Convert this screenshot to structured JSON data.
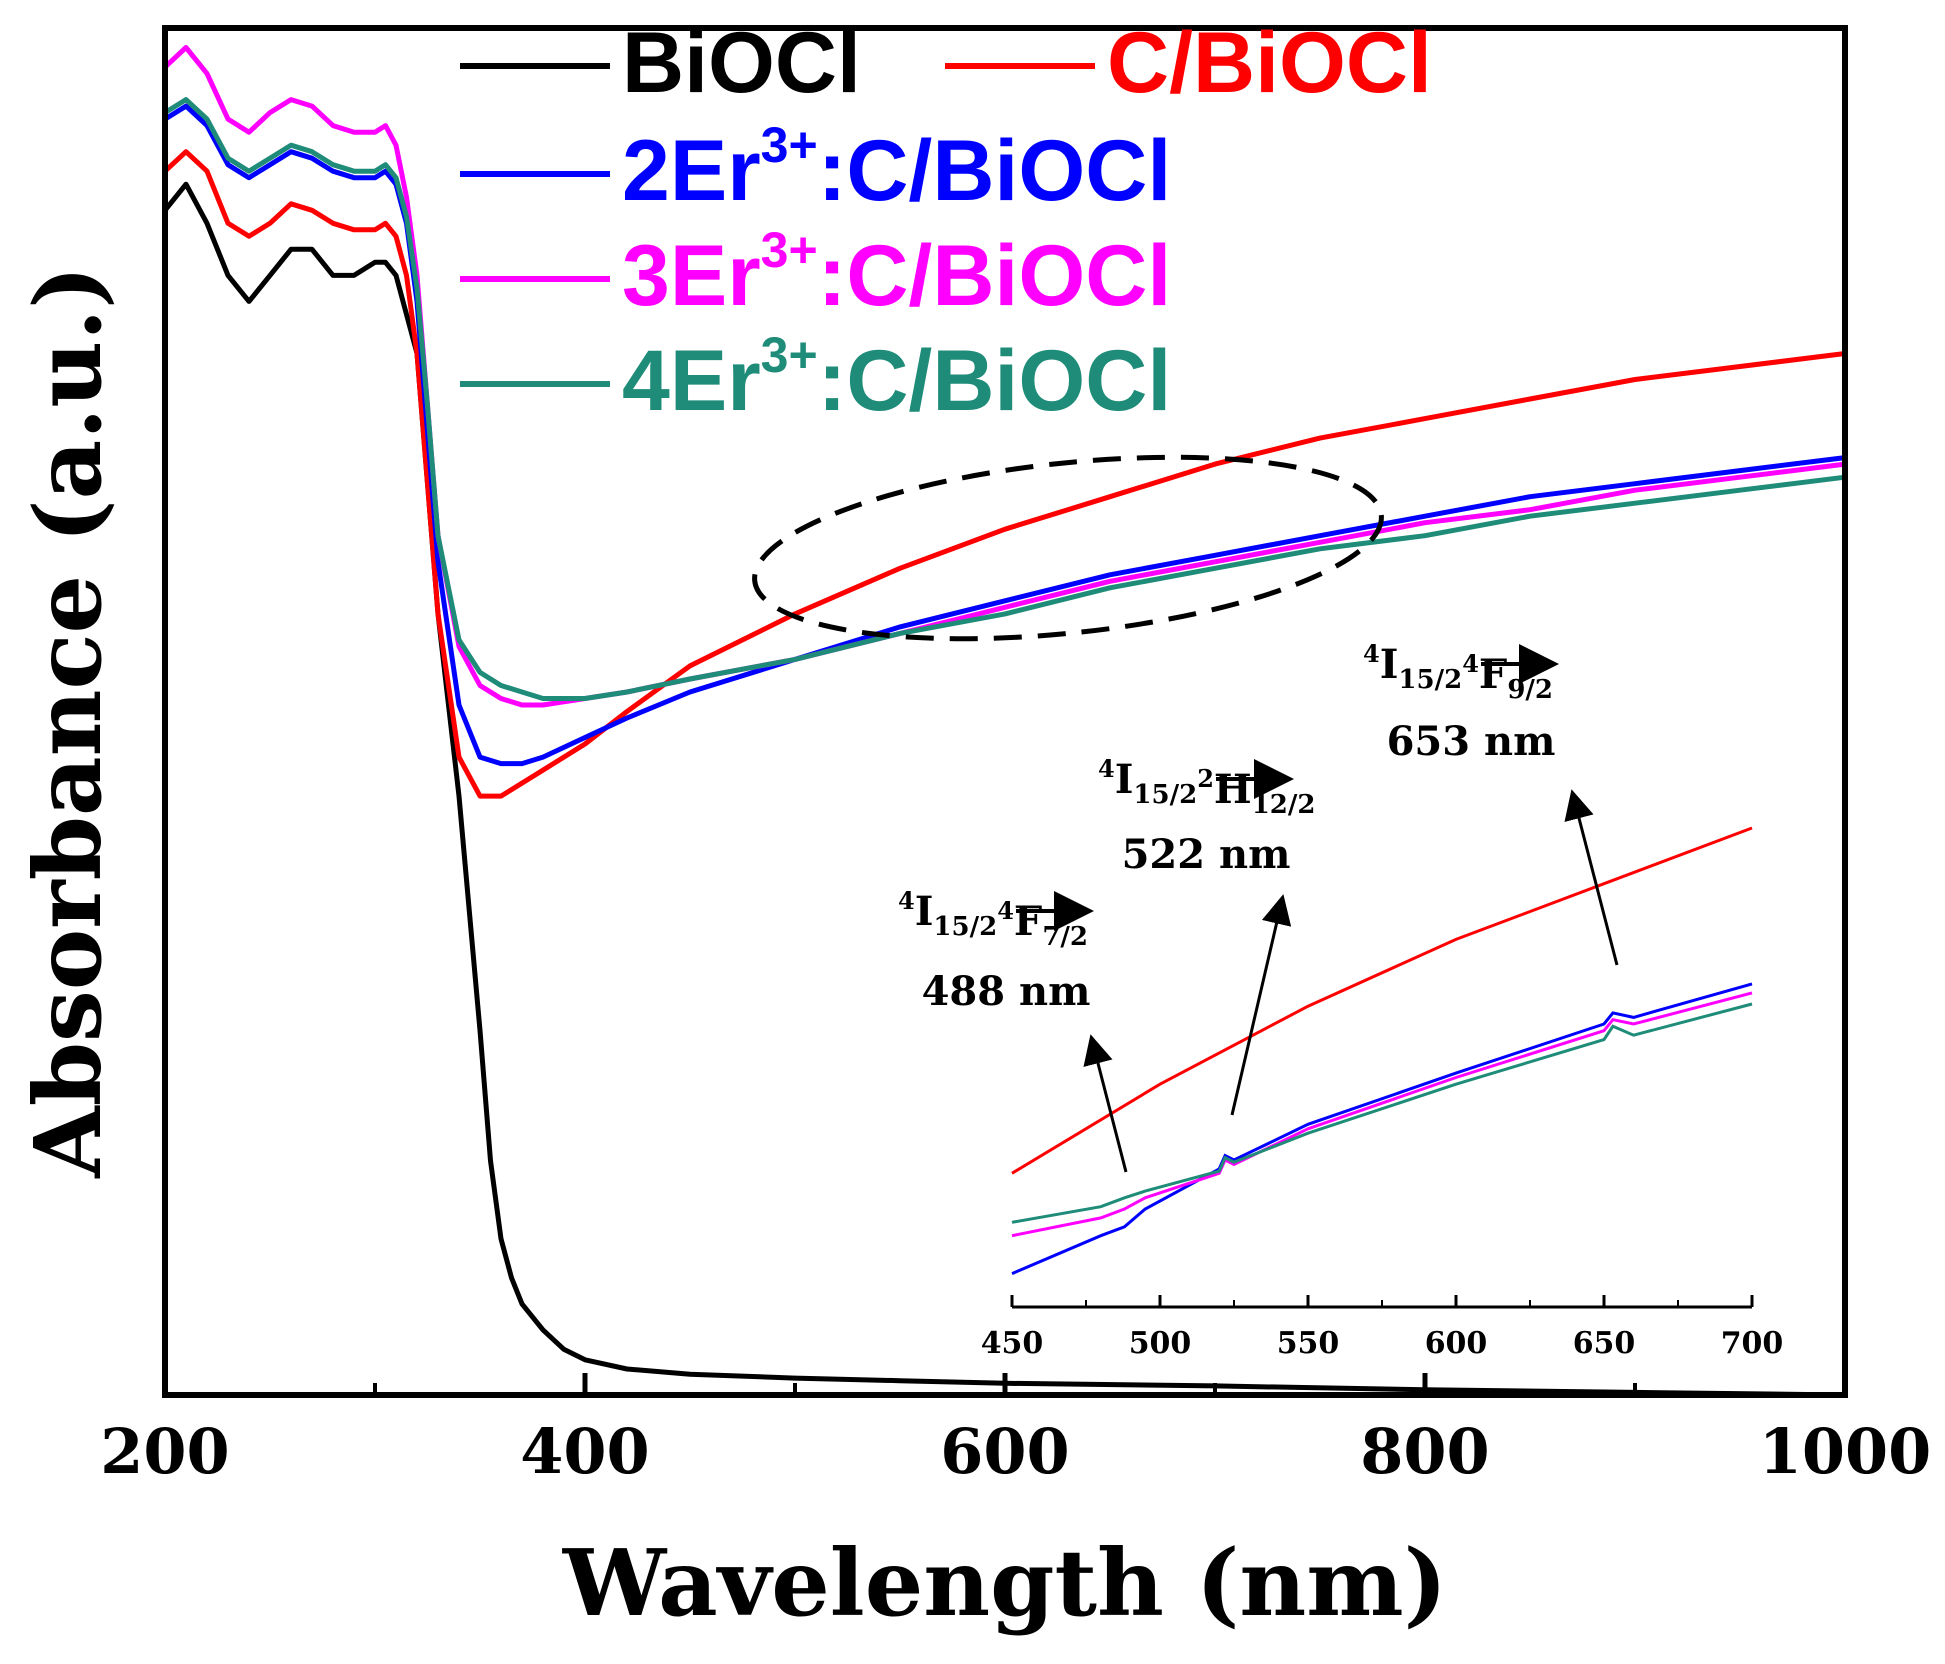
{
  "chart_data": {
    "type": "line",
    "xlabel": "Wavelength (nm)",
    "ylabel": "Absorbance (a.u.)",
    "xlim": [
      200,
      1000
    ],
    "ylim": [
      0,
      1.05
    ],
    "x_ticks": [
      200,
      400,
      600,
      800,
      1000
    ],
    "grid": false,
    "legend_position": "top",
    "series": [
      {
        "name": "BiOCl",
        "legend_label": "BiOCl",
        "color": "#000000",
        "x": [
          200,
          210,
          220,
          230,
          240,
          250,
          260,
          270,
          280,
          290,
          300,
          305,
          310,
          320,
          325,
          330,
          340,
          350,
          355,
          360,
          365,
          370,
          375,
          380,
          390,
          400,
          420,
          450,
          500,
          550,
          600,
          700,
          800,
          900,
          1000
        ],
        "y": [
          0.91,
          0.93,
          0.9,
          0.86,
          0.84,
          0.86,
          0.88,
          0.88,
          0.86,
          0.86,
          0.87,
          0.87,
          0.86,
          0.8,
          0.7,
          0.6,
          0.46,
          0.28,
          0.18,
          0.12,
          0.09,
          0.07,
          0.06,
          0.05,
          0.035,
          0.027,
          0.02,
          0.016,
          0.013,
          0.011,
          0.009,
          0.007,
          0.004,
          0.002,
          0.0
        ]
      },
      {
        "name": "C/BiOCl",
        "legend_label": "C/BiOCl",
        "color": "#ff0000",
        "x": [
          200,
          210,
          220,
          230,
          240,
          250,
          260,
          270,
          280,
          290,
          300,
          305,
          310,
          315,
          320,
          325,
          330,
          340,
          350,
          360,
          370,
          380,
          400,
          420,
          450,
          500,
          550,
          600,
          650,
          700,
          750,
          800,
          850,
          900,
          950,
          1000
        ],
        "y": [
          0.94,
          0.955,
          0.94,
          0.9,
          0.89,
          0.9,
          0.915,
          0.91,
          0.9,
          0.895,
          0.895,
          0.9,
          0.89,
          0.86,
          0.8,
          0.7,
          0.6,
          0.49,
          0.46,
          0.46,
          0.47,
          0.48,
          0.5,
          0.525,
          0.56,
          0.6,
          0.635,
          0.665,
          0.69,
          0.715,
          0.735,
          0.75,
          0.765,
          0.78,
          0.79,
          0.8
        ]
      },
      {
        "name": "2Er3+:C/BiOCl",
        "legend_prefix": "2Er",
        "legend_sup": "3+",
        "legend_suffix": ":C/BiOCl",
        "color": "#0000ff",
        "x": [
          200,
          210,
          220,
          230,
          240,
          250,
          260,
          270,
          280,
          290,
          300,
          305,
          310,
          315,
          320,
          325,
          330,
          340,
          350,
          360,
          370,
          380,
          400,
          420,
          450,
          500,
          550,
          600,
          650,
          700,
          750,
          800,
          850,
          900,
          950,
          1000
        ],
        "y": [
          0.98,
          0.99,
          0.975,
          0.945,
          0.935,
          0.945,
          0.955,
          0.95,
          0.94,
          0.935,
          0.935,
          0.94,
          0.93,
          0.9,
          0.84,
          0.74,
          0.64,
          0.53,
          0.49,
          0.485,
          0.485,
          0.49,
          0.505,
          0.52,
          0.54,
          0.565,
          0.59,
          0.61,
          0.63,
          0.645,
          0.66,
          0.675,
          0.69,
          0.7,
          0.71,
          0.72
        ]
      },
      {
        "name": "3Er3+:C/BiOCl",
        "legend_prefix": "3Er",
        "legend_sup": "3+",
        "legend_suffix": ":C/BiOCl",
        "color": "#ff00ff",
        "x": [
          200,
          210,
          220,
          230,
          240,
          250,
          260,
          270,
          280,
          290,
          300,
          305,
          310,
          315,
          320,
          325,
          330,
          340,
          350,
          360,
          370,
          380,
          400,
          420,
          450,
          500,
          550,
          600,
          650,
          700,
          750,
          800,
          850,
          900,
          950,
          1000
        ],
        "y": [
          1.02,
          1.035,
          1.015,
          0.98,
          0.97,
          0.985,
          0.995,
          0.99,
          0.975,
          0.97,
          0.97,
          0.975,
          0.96,
          0.92,
          0.86,
          0.76,
          0.66,
          0.575,
          0.545,
          0.535,
          0.53,
          0.53,
          0.535,
          0.54,
          0.55,
          0.565,
          0.585,
          0.605,
          0.625,
          0.64,
          0.655,
          0.67,
          0.68,
          0.695,
          0.705,
          0.715
        ]
      },
      {
        "name": "4Er3+:C/BiOCl",
        "legend_prefix": "4Er",
        "legend_sup": "3+",
        "legend_suffix": ":C/BiOCl",
        "color": "#1e8c78",
        "x": [
          200,
          210,
          220,
          230,
          240,
          250,
          260,
          270,
          280,
          290,
          300,
          305,
          310,
          315,
          320,
          325,
          330,
          340,
          350,
          360,
          370,
          380,
          400,
          420,
          450,
          500,
          550,
          600,
          650,
          700,
          750,
          800,
          850,
          900,
          950,
          1000
        ],
        "y": [
          0.985,
          0.995,
          0.98,
          0.95,
          0.94,
          0.95,
          0.96,
          0.955,
          0.945,
          0.94,
          0.94,
          0.945,
          0.935,
          0.905,
          0.85,
          0.76,
          0.66,
          0.58,
          0.555,
          0.545,
          0.54,
          0.535,
          0.535,
          0.54,
          0.55,
          0.565,
          0.585,
          0.6,
          0.62,
          0.635,
          0.65,
          0.66,
          0.675,
          0.685,
          0.695,
          0.705
        ]
      }
    ],
    "highlight_ellipse": {
      "x_range": [
        480,
        780
      ],
      "note": "dashed ellipse around 488-653 nm region"
    },
    "inset": {
      "xlim": [
        450,
        700
      ],
      "x_ticks": [
        450,
        500,
        550,
        600,
        650,
        700
      ],
      "ylim": [
        0.5,
        0.75
      ],
      "series": [
        {
          "name": "C/BiOCl",
          "color": "#ff0000",
          "x": [
            450,
            500,
            550,
            600,
            650,
            700
          ],
          "y": [
            0.56,
            0.6,
            0.635,
            0.665,
            0.69,
            0.715
          ]
        },
        {
          "name": "2Er3+:C/BiOCl",
          "color": "#0000ff",
          "x": [
            450,
            480,
            488,
            495,
            520,
            522,
            525,
            550,
            600,
            650,
            653,
            660,
            700
          ],
          "y": [
            0.515,
            0.532,
            0.536,
            0.544,
            0.562,
            0.568,
            0.566,
            0.582,
            0.605,
            0.627,
            0.632,
            0.63,
            0.645
          ]
        },
        {
          "name": "3Er3+:C/BiOCl",
          "color": "#ff00ff",
          "x": [
            450,
            480,
            488,
            495,
            520,
            522,
            525,
            550,
            600,
            650,
            653,
            660,
            700
          ],
          "y": [
            0.532,
            0.54,
            0.544,
            0.549,
            0.56,
            0.566,
            0.564,
            0.58,
            0.603,
            0.624,
            0.629,
            0.627,
            0.641
          ]
        },
        {
          "name": "4Er3+:C/BiOCl",
          "color": "#1e8c78",
          "x": [
            450,
            480,
            488,
            495,
            520,
            522,
            525,
            550,
            600,
            650,
            653,
            660,
            700
          ],
          "y": [
            0.538,
            0.545,
            0.549,
            0.552,
            0.561,
            0.567,
            0.565,
            0.578,
            0.6,
            0.62,
            0.626,
            0.622,
            0.636
          ]
        }
      ],
      "annotations": [
        {
          "x": 488,
          "wavelength": "488 nm",
          "from_main": "I",
          "from_sub": "15/2",
          "to_main": "F",
          "to_sub": "7/2"
        },
        {
          "x": 522,
          "wavelength": "522 nm",
          "from_main": "I",
          "from_sub": "15/2",
          "to_main": "H",
          "to_sub": "12/2"
        },
        {
          "x": 653,
          "wavelength": "653 nm",
          "from_main": "I",
          "from_sub": "15/2",
          "to_main": "F",
          "to_sub": "9/2"
        }
      ],
      "annotation_sup_from": "4",
      "annotation_sup_to": [
        "4",
        "2",
        "4"
      ]
    }
  }
}
